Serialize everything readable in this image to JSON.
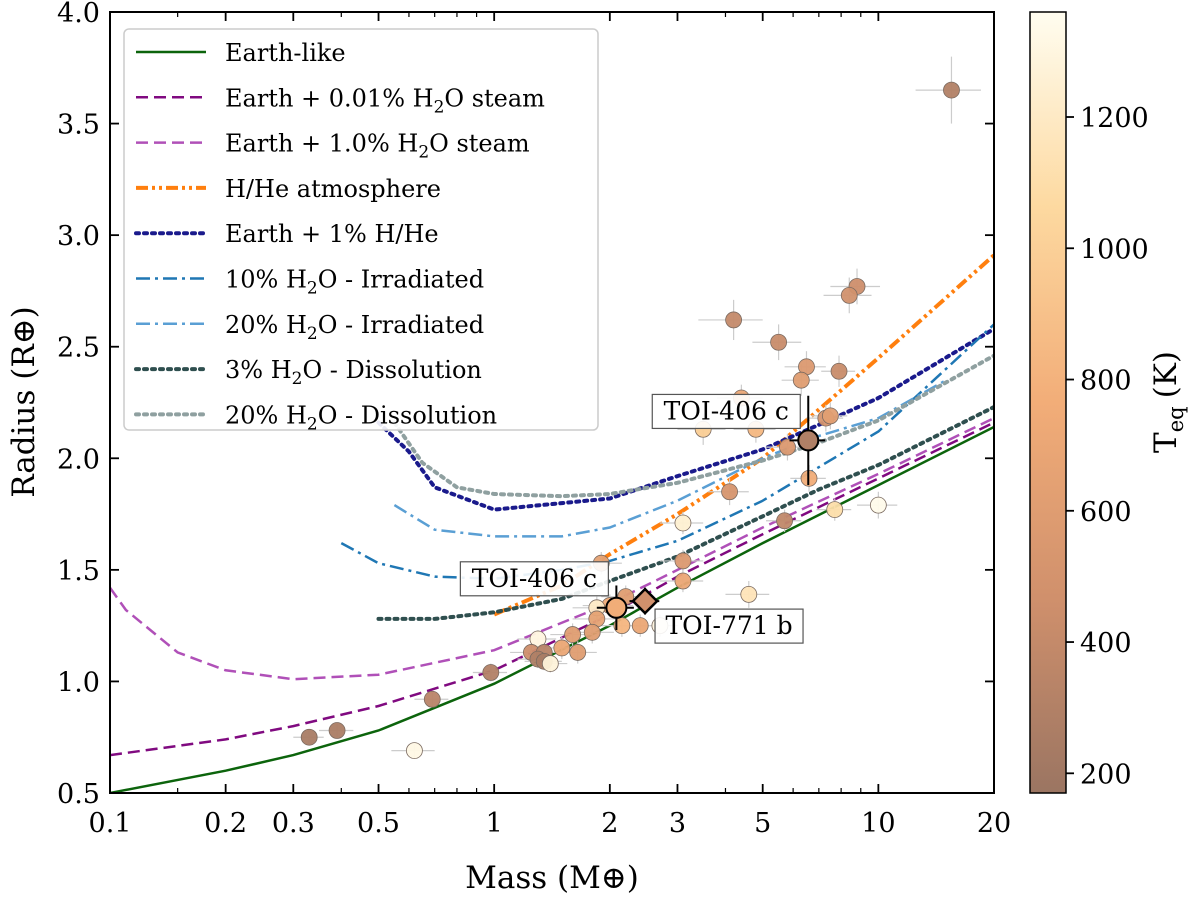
{
  "chart_data": {
    "type": "scatter",
    "xlabel": "Mass (M⊕)",
    "ylabel": "Radius (R⊕)",
    "xscale": "log",
    "xlim": [
      0.1,
      20
    ],
    "ylim": [
      0.5,
      4.0
    ],
    "x_ticks": [
      0.1,
      0.2,
      0.3,
      0.5,
      1,
      2,
      3,
      5,
      10,
      20
    ],
    "x_tick_labels": [
      "0.1",
      "0.2",
      "0.3",
      "0.5",
      "1",
      "2",
      "3",
      "5",
      "10",
      "20"
    ],
    "y_ticks": [
      0.5,
      1.0,
      1.5,
      2.0,
      2.5,
      3.0,
      3.5,
      4.0
    ],
    "y_tick_labels": [
      "0.5",
      "1.0",
      "1.5",
      "2.0",
      "2.5",
      "3.0",
      "3.5",
      "4.0"
    ],
    "legend_position": "top-left",
    "colorbar": {
      "label": "T",
      "label_sub": "eq",
      "label_unit": "(K)",
      "min": 170,
      "max": 1360,
      "ticks": [
        200,
        400,
        600,
        800,
        1000,
        1200
      ],
      "tick_labels": [
        "200",
        "400",
        "600",
        "800",
        "1000",
        "1200"
      ],
      "colormap": "copper-to-cream"
    },
    "series": [
      {
        "name": "Earth-like",
        "legend_label": "Earth-like",
        "color": "#0c640c",
        "dash": "solid",
        "x": [
          0.1,
          0.2,
          0.3,
          0.5,
          1,
          2,
          3,
          5,
          10,
          20
        ],
        "y": [
          0.5,
          0.6,
          0.67,
          0.78,
          0.99,
          1.25,
          1.42,
          1.62,
          1.88,
          2.14
        ]
      },
      {
        "name": "Earth + 0.01% H2O steam",
        "legend_label": "Earth + 0.01% H2O steam",
        "color": "#800a80",
        "dash": "dashed",
        "x": [
          0.1,
          0.2,
          0.3,
          0.5,
          1,
          2,
          3,
          5,
          10,
          20
        ],
        "y": [
          0.67,
          0.74,
          0.8,
          0.89,
          1.05,
          1.3,
          1.47,
          1.66,
          1.91,
          2.16
        ]
      },
      {
        "name": "Earth + 1.0% H2O steam",
        "legend_label": "Earth + 1.0% H2O steam",
        "color": "#b050b8",
        "dash": "dashed",
        "x": [
          0.1,
          0.11,
          0.15,
          0.2,
          0.3,
          0.5,
          1,
          2,
          3,
          5,
          10,
          20
        ],
        "y": [
          1.42,
          1.32,
          1.13,
          1.05,
          1.01,
          1.03,
          1.14,
          1.35,
          1.5,
          1.69,
          1.93,
          2.18
        ]
      },
      {
        "name": "H/He atmosphere",
        "legend_label": "H/He atmosphere",
        "color": "#ff7f0e",
        "dash": "dashdotdot",
        "x": [
          1,
          1.5,
          2,
          3,
          5,
          10,
          20
        ],
        "y": [
          1.3,
          1.43,
          1.57,
          1.75,
          2.0,
          2.45,
          2.91
        ]
      },
      {
        "name": "Earth + 1% H/He",
        "legend_label": "Earth + 1% H/He",
        "color": "#1a1a8c",
        "dash": "dotted",
        "x": [
          0.5,
          0.6,
          0.7,
          1,
          2,
          3,
          5,
          7,
          10,
          20
        ],
        "y": [
          2.16,
          2.03,
          1.87,
          1.77,
          1.82,
          1.92,
          2.04,
          2.15,
          2.27,
          2.58
        ]
      },
      {
        "name": "10% H2O - Irradiated",
        "legend_label": "10% H2O - Irradiated",
        "color": "#1f77b4",
        "dash": "dashdot",
        "x": [
          0.4,
          0.5,
          0.7,
          1,
          1.5,
          2,
          3,
          5,
          7,
          10,
          20
        ],
        "y": [
          1.62,
          1.53,
          1.47,
          1.46,
          1.5,
          1.54,
          1.63,
          1.81,
          1.96,
          2.12,
          2.6
        ]
      },
      {
        "name": "20% H2O - Irradiated",
        "legend_label": "20% H2O - Irradiated",
        "color": "#5a9fd4",
        "dash": "dashdot",
        "x": [
          0.55,
          0.7,
          1,
          1.5,
          2,
          3,
          5,
          7,
          10,
          15
        ],
        "y": [
          1.79,
          1.68,
          1.65,
          1.65,
          1.69,
          1.81,
          2.0,
          2.1,
          2.18,
          2.35
        ]
      },
      {
        "name": "3% H2O - Dissolution",
        "legend_label": "3% H2O - Dissolution",
        "color": "#2f4f4f",
        "dash": "dotted",
        "x": [
          0.5,
          0.7,
          1,
          1.5,
          2,
          3,
          5,
          7,
          10,
          20
        ],
        "y": [
          1.28,
          1.28,
          1.31,
          1.37,
          1.45,
          1.56,
          1.74,
          1.86,
          1.97,
          2.23
        ]
      },
      {
        "name": "20% H2O - Dissolution",
        "legend_label": "20% H2O - Dissolution",
        "color": "#8fa0a0",
        "dash": "dotted",
        "x": [
          0.55,
          0.65,
          0.8,
          1,
          1.5,
          2,
          3,
          5,
          7,
          10,
          20
        ],
        "y": [
          2.16,
          1.98,
          1.87,
          1.84,
          1.83,
          1.84,
          1.89,
          1.99,
          2.07,
          2.17,
          2.46
        ]
      }
    ],
    "planets": [
      {
        "mass": 15.5,
        "radius": 3.65,
        "teq": 300,
        "xerr": [
          3,
          3
        ],
        "yerr": [
          0.15,
          0.15
        ]
      },
      {
        "mass": 8.8,
        "radius": 2.77,
        "teq": 450,
        "xerr": [
          1.3,
          1.3
        ],
        "yerr": [
          0.08,
          0.08
        ]
      },
      {
        "mass": 8.4,
        "radius": 2.73,
        "teq": 480,
        "xerr": [
          1.2,
          1.2
        ],
        "yerr": [
          0.08,
          0.08
        ]
      },
      {
        "mass": 4.2,
        "radius": 2.62,
        "teq": 400,
        "xerr": [
          0.8,
          0.8
        ],
        "yerr": [
          0.09,
          0.09
        ]
      },
      {
        "mass": 5.5,
        "radius": 2.52,
        "teq": 420,
        "xerr": [
          0.8,
          0.8
        ],
        "yerr": [
          0.08,
          0.08
        ]
      },
      {
        "mass": 6.5,
        "radius": 2.41,
        "teq": 560,
        "xerr": [
          0.8,
          0.8
        ],
        "yerr": [
          0.07,
          0.07
        ]
      },
      {
        "mass": 7.9,
        "radius": 2.39,
        "teq": 420,
        "xerr": [
          0.8,
          0.8
        ],
        "yerr": [
          0.07,
          0.07
        ]
      },
      {
        "mass": 6.3,
        "radius": 2.35,
        "teq": 600,
        "xerr": [
          0.7,
          0.7
        ],
        "yerr": [
          0.07,
          0.07
        ]
      },
      {
        "mass": 4.4,
        "radius": 2.27,
        "teq": 700,
        "xerr": [
          0.6,
          0.6
        ],
        "yerr": [
          0.06,
          0.06
        ]
      },
      {
        "mass": 7.3,
        "radius": 2.18,
        "teq": 520,
        "xerr": [
          0.8,
          0.8
        ],
        "yerr": [
          0.06,
          0.06
        ]
      },
      {
        "mass": 7.5,
        "radius": 2.19,
        "teq": 620,
        "xerr": [
          0.8,
          0.8
        ],
        "yerr": [
          0.06,
          0.06
        ]
      },
      {
        "mass": 3.5,
        "radius": 2.13,
        "teq": 980,
        "xerr": [
          0.5,
          0.5
        ],
        "yerr": [
          0.07,
          0.07
        ]
      },
      {
        "mass": 4.8,
        "radius": 2.13,
        "teq": 830,
        "xerr": [
          0.6,
          0.6
        ],
        "yerr": [
          0.06,
          0.06
        ]
      },
      {
        "mass": 5.8,
        "radius": 2.05,
        "teq": 560,
        "xerr": [
          0.7,
          0.7
        ],
        "yerr": [
          0.06,
          0.06
        ]
      },
      {
        "mass": 6.6,
        "radius": 1.91,
        "teq": 760,
        "xerr": [
          0.7,
          0.7
        ],
        "yerr": [
          0.06,
          0.06
        ]
      },
      {
        "mass": 4.1,
        "radius": 1.85,
        "teq": 520,
        "xerr": [
          0.5,
          0.5
        ],
        "yerr": [
          0.06,
          0.06
        ]
      },
      {
        "mass": 7.7,
        "radius": 1.77,
        "teq": 1100,
        "xerr": [
          0.8,
          0.8
        ],
        "yerr": [
          0.05,
          0.05
        ]
      },
      {
        "mass": 5.7,
        "radius": 1.72,
        "teq": 380,
        "xerr": [
          0.6,
          0.6
        ],
        "yerr": [
          0.05,
          0.05
        ]
      },
      {
        "mass": 3.1,
        "radius": 1.71,
        "teq": 1250,
        "xerr": [
          0.4,
          0.4
        ],
        "yerr": [
          0.05,
          0.05
        ]
      },
      {
        "mass": 10.0,
        "radius": 1.79,
        "teq": 1340,
        "xerr": [
          1.2,
          1.2
        ],
        "yerr": [
          0.06,
          0.06
        ]
      },
      {
        "mass": 3.1,
        "radius": 1.54,
        "teq": 560,
        "xerr": [
          0.4,
          0.4
        ],
        "yerr": [
          0.05,
          0.05
        ]
      },
      {
        "mass": 1.9,
        "radius": 1.53,
        "teq": 640,
        "xerr": [
          0.25,
          0.25
        ],
        "yerr": [
          0.05,
          0.05
        ]
      },
      {
        "mass": 3.1,
        "radius": 1.45,
        "teq": 700,
        "xerr": [
          0.4,
          0.4
        ],
        "yerr": [
          0.05,
          0.05
        ]
      },
      {
        "mass": 4.6,
        "radius": 1.39,
        "teq": 1150,
        "xerr": [
          0.6,
          0.6
        ],
        "yerr": [
          0.06,
          0.06
        ]
      },
      {
        "mass": 2.2,
        "radius": 1.38,
        "teq": 600,
        "xerr": [
          0.3,
          0.3
        ],
        "yerr": [
          0.05,
          0.05
        ]
      },
      {
        "mass": 2.0,
        "radius": 1.34,
        "teq": 750,
        "xerr": [
          0.3,
          0.3
        ],
        "yerr": [
          0.05,
          0.05
        ]
      },
      {
        "mass": 1.85,
        "radius": 1.33,
        "teq": 1200,
        "xerr": [
          0.25,
          0.25
        ],
        "yerr": [
          0.05,
          0.05
        ]
      },
      {
        "mass": 1.85,
        "radius": 1.28,
        "teq": 650,
        "xerr": [
          0.25,
          0.25
        ],
        "yerr": [
          0.05,
          0.05
        ]
      },
      {
        "mass": 2.15,
        "radius": 1.25,
        "teq": 820,
        "xerr": [
          0.25,
          0.25
        ],
        "yerr": [
          0.05,
          0.05
        ]
      },
      {
        "mass": 2.4,
        "radius": 1.25,
        "teq": 700,
        "xerr": [
          0.3,
          0.3
        ],
        "yerr": [
          0.05,
          0.05
        ]
      },
      {
        "mass": 1.8,
        "radius": 1.22,
        "teq": 600,
        "xerr": [
          0.25,
          0.25
        ],
        "yerr": [
          0.05,
          0.05
        ]
      },
      {
        "mass": 2.7,
        "radius": 1.25,
        "teq": 1300,
        "xerr": [
          0.3,
          0.3
        ],
        "yerr": [
          0.05,
          0.05
        ]
      },
      {
        "mass": 1.6,
        "radius": 1.21,
        "teq": 600,
        "xerr": [
          0.2,
          0.2
        ],
        "yerr": [
          0.05,
          0.05
        ]
      },
      {
        "mass": 1.3,
        "radius": 1.19,
        "teq": 1300,
        "xerr": [
          0.15,
          0.15
        ],
        "yerr": [
          0.04,
          0.04
        ]
      },
      {
        "mass": 1.5,
        "radius": 1.15,
        "teq": 700,
        "xerr": [
          0.2,
          0.2
        ],
        "yerr": [
          0.05,
          0.05
        ]
      },
      {
        "mass": 1.25,
        "radius": 1.13,
        "teq": 450,
        "xerr": [
          0.15,
          0.15
        ],
        "yerr": [
          0.04,
          0.04
        ]
      },
      {
        "mass": 1.35,
        "radius": 1.13,
        "teq": 330,
        "xerr": [
          0.15,
          0.15
        ],
        "yerr": [
          0.04,
          0.04
        ]
      },
      {
        "mass": 1.3,
        "radius": 1.1,
        "teq": 280,
        "xerr": [
          0.15,
          0.15
        ],
        "yerr": [
          0.04,
          0.04
        ]
      },
      {
        "mass": 1.35,
        "radius": 1.09,
        "teq": 250,
        "xerr": [
          0.15,
          0.15
        ],
        "yerr": [
          0.04,
          0.04
        ]
      },
      {
        "mass": 1.65,
        "radius": 1.13,
        "teq": 600,
        "xerr": [
          0.2,
          0.2
        ],
        "yerr": [
          0.05,
          0.05
        ]
      },
      {
        "mass": 1.4,
        "radius": 1.08,
        "teq": 1280,
        "xerr": [
          0.15,
          0.15
        ],
        "yerr": [
          0.04,
          0.04
        ]
      },
      {
        "mass": 0.98,
        "radius": 1.04,
        "teq": 300,
        "xerr": [
          0.1,
          0.1
        ],
        "yerr": [
          0.04,
          0.04
        ]
      },
      {
        "mass": 0.69,
        "radius": 0.92,
        "teq": 340,
        "xerr": [
          0.07,
          0.07
        ],
        "yerr": [
          0.03,
          0.03
        ]
      },
      {
        "mass": 0.39,
        "radius": 0.78,
        "teq": 260,
        "xerr": [
          0.04,
          0.04
        ],
        "yerr": [
          0.03,
          0.03
        ]
      },
      {
        "mass": 0.33,
        "radius": 0.75,
        "teq": 250,
        "xerr": [
          0.03,
          0.03
        ],
        "yerr": [
          0.03,
          0.03
        ]
      },
      {
        "mass": 0.62,
        "radius": 0.69,
        "teq": 1320,
        "xerr": [
          0.08,
          0.08
        ],
        "yerr": [
          0.03,
          0.03
        ]
      }
    ],
    "highlighted": [
      {
        "name": "TOI-406 c",
        "marker": "circle",
        "mass": 6.57,
        "radius": 2.08,
        "teq": 290,
        "xerr": [
          0.7,
          0.7
        ],
        "yerr": [
          0.2,
          0.2
        ],
        "label_side": "upper-left"
      },
      {
        "name": "TOI-406 c",
        "marker": "circle",
        "mass": 2.08,
        "radius": 1.33,
        "teq": 760,
        "xerr": [
          0.23,
          0.23
        ],
        "yerr": [
          0.1,
          0.1
        ],
        "label_side": "upper-left"
      },
      {
        "name": "TOI-771 b",
        "marker": "diamond",
        "mass": 2.47,
        "radius": 1.36,
        "teq": 470,
        "xerr": [
          0.22,
          0.22
        ],
        "yerr": [
          0.06,
          0.06
        ],
        "label_side": "lower-right"
      }
    ]
  }
}
